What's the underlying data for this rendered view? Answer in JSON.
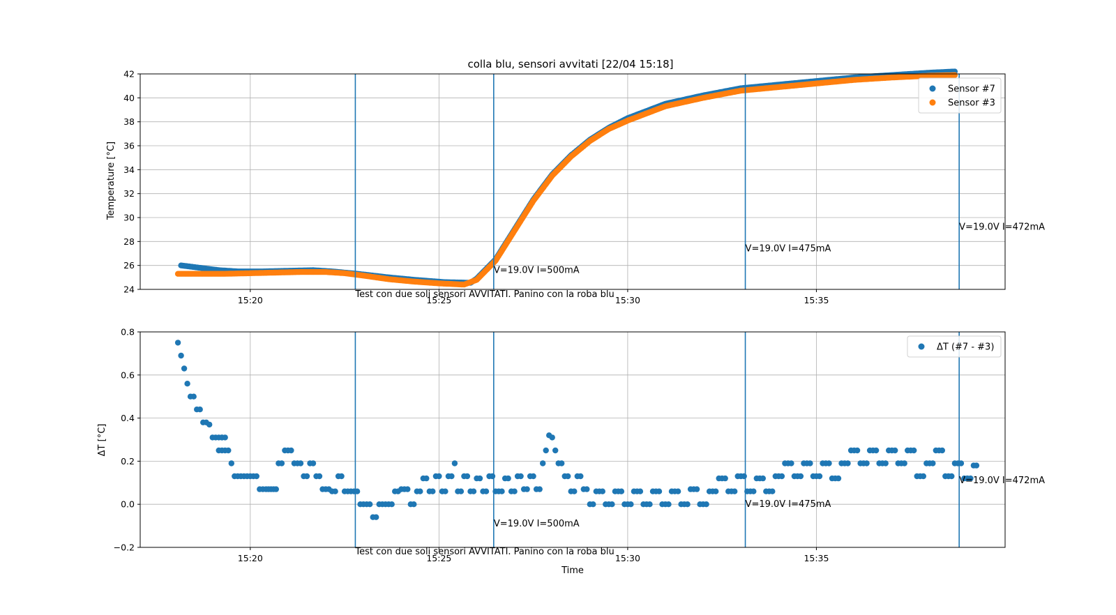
{
  "chart_data": [
    {
      "type": "scatter",
      "title": "colla blu, sensori avvitati [22/04 15:18]",
      "xlabel": "",
      "ylabel": "Temperature [°C]",
      "xlim": [
        "15:17:05",
        "15:40:00"
      ],
      "ylim": [
        24,
        42
      ],
      "xticks": [
        "15:20",
        "15:25",
        "15:30",
        "15:35"
      ],
      "yticks": [
        "24",
        "26",
        "28",
        "30",
        "32",
        "34",
        "36",
        "38",
        "40",
        "42"
      ],
      "grid": true,
      "legend_position": "upper right",
      "series": [
        {
          "name": "Sensor #7",
          "color": "#1f77b4",
          "points": [
            [
              "15:18:10",
              26.0
            ],
            [
              "15:18:40",
              25.8
            ],
            [
              "15:19:10",
              25.6
            ],
            [
              "15:19:40",
              25.5
            ],
            [
              "15:20:20",
              25.5
            ],
            [
              "15:21:00",
              25.55
            ],
            [
              "15:21:40",
              25.6
            ],
            [
              "15:22:10",
              25.5
            ],
            [
              "15:22:50",
              25.3
            ],
            [
              "15:23:40",
              25.0
            ],
            [
              "15:24:20",
              24.8
            ],
            [
              "15:25:10",
              24.6
            ],
            [
              "15:25:50",
              24.55
            ],
            [
              "15:26:00",
              24.9
            ],
            [
              "15:26:30",
              26.5
            ],
            [
              "15:27:00",
              29.0
            ],
            [
              "15:27:30",
              31.5
            ],
            [
              "15:28:00",
              33.6
            ],
            [
              "15:28:30",
              35.2
            ],
            [
              "15:29:00",
              36.5
            ],
            [
              "15:29:30",
              37.5
            ],
            [
              "15:30:00",
              38.3
            ],
            [
              "15:31:00",
              39.5
            ],
            [
              "15:32:00",
              40.2
            ],
            [
              "15:33:00",
              40.8
            ],
            [
              "15:34:00",
              41.1
            ],
            [
              "15:35:00",
              41.4
            ],
            [
              "15:36:00",
              41.7
            ],
            [
              "15:37:00",
              41.9
            ],
            [
              "15:38:00",
              42.1
            ],
            [
              "15:38:40",
              42.2
            ]
          ]
        },
        {
          "name": "Sensor #3",
          "color": "#ff7f0e",
          "points": [
            [
              "15:18:05",
              25.3
            ],
            [
              "15:18:40",
              25.3
            ],
            [
              "15:19:20",
              25.3
            ],
            [
              "15:20:00",
              25.35
            ],
            [
              "15:20:40",
              25.4
            ],
            [
              "15:21:20",
              25.45
            ],
            [
              "15:22:00",
              25.45
            ],
            [
              "15:22:30",
              25.35
            ],
            [
              "15:23:00",
              25.15
            ],
            [
              "15:23:40",
              24.85
            ],
            [
              "15:24:20",
              24.65
            ],
            [
              "15:25:00",
              24.5
            ],
            [
              "15:25:40",
              24.4
            ],
            [
              "15:26:00",
              24.8
            ],
            [
              "15:26:30",
              26.4
            ],
            [
              "15:27:00",
              28.9
            ],
            [
              "15:27:30",
              31.4
            ],
            [
              "15:28:00",
              33.5
            ],
            [
              "15:28:30",
              35.1
            ],
            [
              "15:29:00",
              36.4
            ],
            [
              "15:29:30",
              37.4
            ],
            [
              "15:30:00",
              38.1
            ],
            [
              "15:31:00",
              39.3
            ],
            [
              "15:32:00",
              40.0
            ],
            [
              "15:33:00",
              40.6
            ],
            [
              "15:34:00",
              40.9
            ],
            [
              "15:35:00",
              41.2
            ],
            [
              "15:36:00",
              41.5
            ],
            [
              "15:37:00",
              41.7
            ],
            [
              "15:38:00",
              41.85
            ],
            [
              "15:38:40",
              41.9
            ]
          ]
        }
      ],
      "vlines": [
        "15:22:47",
        "15:26:27",
        "15:33:07",
        "15:38:47"
      ],
      "annotations": [
        {
          "x": "15:22:47",
          "y": 23.6,
          "text": "Test con due soli sensori AVVITATI. Panino con la roba blu"
        },
        {
          "x": "15:26:27",
          "y": 25.6,
          "text": "V=19.0V I=500mA"
        },
        {
          "x": "15:33:07",
          "y": 27.4,
          "text": "V=19.0V I=475mA"
        },
        {
          "x": "15:38:47",
          "y": 29.2,
          "text": "V=19.0V I=472mA"
        }
      ]
    },
    {
      "type": "scatter",
      "title": "",
      "xlabel": "Time",
      "ylabel": "ΔT [°C]",
      "xlim": [
        "15:17:05",
        "15:40:00"
      ],
      "ylim": [
        -0.2,
        0.8
      ],
      "xticks": [
        "15:20",
        "15:25",
        "15:30",
        "15:35"
      ],
      "yticks": [
        "−0.2",
        "0.0",
        "0.2",
        "0.4",
        "0.6",
        "0.8"
      ],
      "grid": true,
      "legend_position": "upper right",
      "series": [
        {
          "name": "ΔT (#7 - #3)",
          "color": "#1f77b4",
          "points": [
            [
              "15:18:05",
              0.75
            ],
            [
              "15:18:10",
              0.69
            ],
            [
              "15:18:15",
              0.63
            ],
            [
              "15:18:20",
              0.56
            ],
            [
              "15:18:25",
              0.5
            ],
            [
              "15:18:30",
              0.5
            ],
            [
              "15:18:35",
              0.44
            ],
            [
              "15:18:40",
              0.44
            ],
            [
              "15:18:45",
              0.38
            ],
            [
              "15:18:50",
              0.38
            ],
            [
              "15:18:55",
              0.37
            ],
            [
              "15:19:00",
              0.31
            ],
            [
              "15:19:10",
              0.31
            ],
            [
              "15:19:20",
              0.31
            ],
            [
              "15:19:10",
              0.25
            ],
            [
              "15:19:25",
              0.25
            ],
            [
              "15:19:30",
              0.19
            ],
            [
              "15:19:35",
              0.13
            ],
            [
              "15:19:50",
              0.13
            ],
            [
              "15:20:05",
              0.13
            ],
            [
              "15:20:15",
              0.07
            ],
            [
              "15:20:25",
              0.07
            ],
            [
              "15:20:45",
              0.19
            ],
            [
              "15:20:55",
              0.25
            ],
            [
              "15:21:05",
              0.25
            ],
            [
              "15:21:10",
              0.19
            ],
            [
              "15:21:25",
              0.13
            ],
            [
              "15:21:35",
              0.19
            ],
            [
              "15:21:45",
              0.13
            ],
            [
              "15:21:55",
              0.07
            ],
            [
              "15:22:10",
              0.06
            ],
            [
              "15:22:20",
              0.13
            ],
            [
              "15:22:30",
              0.06
            ],
            [
              "15:22:45",
              0.06
            ],
            [
              "15:22:55",
              0.0
            ],
            [
              "15:23:05",
              0.0
            ],
            [
              "15:23:15",
              -0.06
            ],
            [
              "15:23:25",
              0.0
            ],
            [
              "15:23:35",
              0.0
            ],
            [
              "15:23:45",
              0.0
            ],
            [
              "15:23:50",
              0.06
            ],
            [
              "15:24:00",
              0.07
            ],
            [
              "15:24:15",
              0.0
            ],
            [
              "15:24:25",
              0.06
            ],
            [
              "15:24:35",
              0.12
            ],
            [
              "15:24:45",
              0.06
            ],
            [
              "15:24:55",
              0.13
            ],
            [
              "15:25:05",
              0.06
            ],
            [
              "15:25:15",
              0.13
            ],
            [
              "15:25:25",
              0.19
            ],
            [
              "15:25:30",
              0.06
            ],
            [
              "15:25:40",
              0.13
            ],
            [
              "15:25:50",
              0.06
            ],
            [
              "15:26:00",
              0.12
            ],
            [
              "15:26:10",
              0.06
            ],
            [
              "15:26:20",
              0.13
            ],
            [
              "15:26:30",
              0.06
            ],
            [
              "15:26:45",
              0.12
            ],
            [
              "15:26:55",
              0.06
            ],
            [
              "15:27:05",
              0.13
            ],
            [
              "15:27:15",
              0.07
            ],
            [
              "15:27:25",
              0.13
            ],
            [
              "15:27:35",
              0.07
            ],
            [
              "15:27:45",
              0.19
            ],
            [
              "15:27:50",
              0.25
            ],
            [
              "15:27:55",
              0.32
            ],
            [
              "15:28:00",
              0.31
            ],
            [
              "15:28:05",
              0.25
            ],
            [
              "15:28:10",
              0.19
            ],
            [
              "15:28:20",
              0.13
            ],
            [
              "15:28:30",
              0.06
            ],
            [
              "15:28:40",
              0.13
            ],
            [
              "15:28:50",
              0.07
            ],
            [
              "15:29:00",
              0.0
            ],
            [
              "15:29:10",
              0.06
            ],
            [
              "15:29:25",
              0.0
            ],
            [
              "15:29:40",
              0.06
            ],
            [
              "15:29:55",
              0.0
            ],
            [
              "15:30:10",
              0.06
            ],
            [
              "15:30:25",
              0.0
            ],
            [
              "15:30:40",
              0.06
            ],
            [
              "15:30:55",
              0.0
            ],
            [
              "15:31:10",
              0.06
            ],
            [
              "15:31:25",
              0.0
            ],
            [
              "15:31:40",
              0.07
            ],
            [
              "15:31:55",
              0.0
            ],
            [
              "15:32:10",
              0.06
            ],
            [
              "15:32:25",
              0.12
            ],
            [
              "15:32:40",
              0.06
            ],
            [
              "15:32:55",
              0.13
            ],
            [
              "15:33:10",
              0.06
            ],
            [
              "15:33:25",
              0.12
            ],
            [
              "15:33:40",
              0.06
            ],
            [
              "15:33:55",
              0.13
            ],
            [
              "15:34:10",
              0.19
            ],
            [
              "15:34:25",
              0.13
            ],
            [
              "15:34:40",
              0.19
            ],
            [
              "15:34:55",
              0.13
            ],
            [
              "15:35:10",
              0.19
            ],
            [
              "15:35:25",
              0.12
            ],
            [
              "15:35:40",
              0.19
            ],
            [
              "15:35:55",
              0.25
            ],
            [
              "15:36:10",
              0.19
            ],
            [
              "15:36:25",
              0.25
            ],
            [
              "15:36:40",
              0.19
            ],
            [
              "15:36:55",
              0.25
            ],
            [
              "15:37:10",
              0.19
            ],
            [
              "15:37:25",
              0.25
            ],
            [
              "15:37:40",
              0.13
            ],
            [
              "15:37:55",
              0.19
            ],
            [
              "15:38:10",
              0.25
            ],
            [
              "15:38:25",
              0.13
            ],
            [
              "15:38:40",
              0.19
            ],
            [
              "15:38:55",
              0.12
            ],
            [
              "15:39:10",
              0.18
            ]
          ]
        }
      ],
      "vlines": [
        "15:22:47",
        "15:26:27",
        "15:33:07",
        "15:38:47"
      ],
      "annotations": [
        {
          "x": "15:22:47",
          "y": -0.22,
          "text": "Test con due soli sensori AVVITATI. Panino con la roba blu"
        },
        {
          "x": "15:26:27",
          "y": -0.09,
          "text": "V=19.0V I=500mA"
        },
        {
          "x": "15:33:07",
          "y": 0.0,
          "text": "V=19.0V I=475mA"
        },
        {
          "x": "15:38:47",
          "y": 0.11,
          "text": "V=19.0V I=472mA"
        }
      ]
    }
  ]
}
